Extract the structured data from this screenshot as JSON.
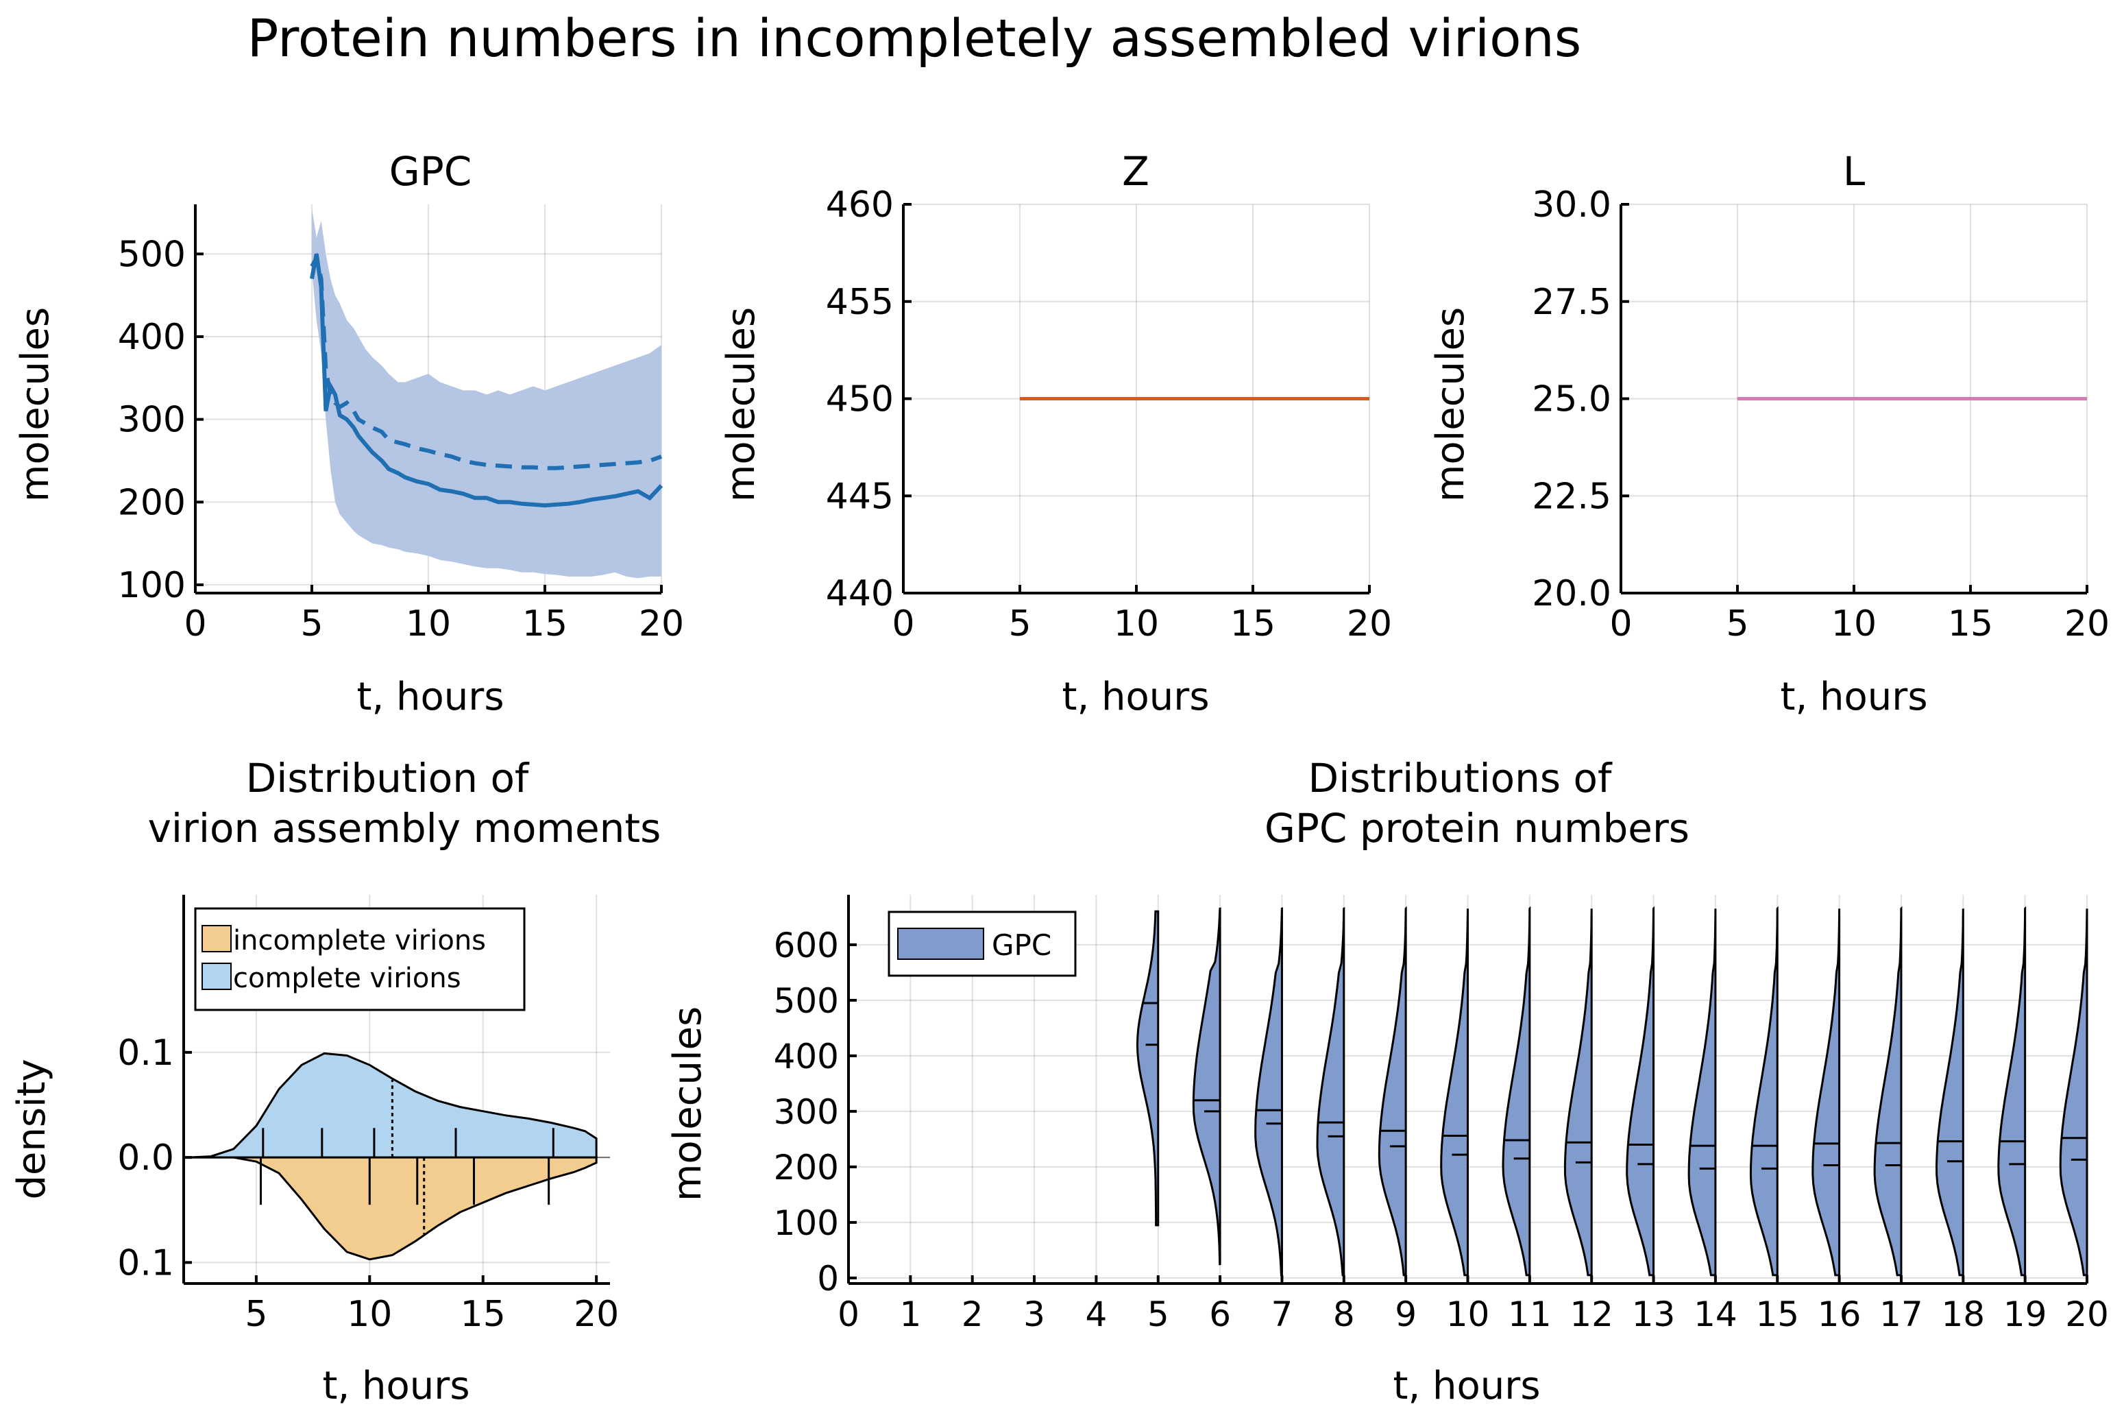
{
  "figure_title": "Protein numbers in incompletely assembled virions",
  "chart_data": [
    {
      "id": "gpc",
      "type": "line",
      "title": "GPC",
      "xlabel": "t, hours",
      "ylabel": "molecules",
      "xlim": [
        0,
        20
      ],
      "ylim": [
        90,
        560
      ],
      "xticks": [
        0,
        5,
        10,
        15,
        20
      ],
      "yticks": [
        100,
        200,
        300,
        400,
        500
      ],
      "xtick_labels": [
        "0",
        "5",
        "10",
        "15",
        "20"
      ],
      "ytick_labels": [
        "100",
        "200",
        "300",
        "400",
        "500"
      ],
      "grid": true,
      "colors": {
        "line": "#1f6fb2",
        "band": "#b4c6e4"
      },
      "x": [
        5.0,
        5.2,
        5.4,
        5.6,
        5.8,
        6.0,
        6.2,
        6.5,
        6.8,
        7.0,
        7.3,
        7.6,
        8.0,
        8.3,
        8.7,
        9.0,
        9.5,
        10.0,
        10.5,
        11.0,
        11.5,
        12.0,
        12.5,
        13.0,
        13.5,
        14.0,
        14.5,
        15.0,
        15.5,
        16.0,
        16.5,
        17.0,
        17.5,
        18.0,
        18.5,
        19.0,
        19.5,
        20.0
      ],
      "series": [
        {
          "name": "band_upper",
          "values": [
            555,
            520,
            540,
            500,
            470,
            450,
            440,
            420,
            410,
            400,
            385,
            375,
            365,
            355,
            345,
            345,
            350,
            355,
            345,
            340,
            335,
            335,
            330,
            335,
            330,
            335,
            340,
            335,
            340,
            345,
            350,
            355,
            360,
            365,
            370,
            375,
            380,
            390
          ]
        },
        {
          "name": "band_lower",
          "values": [
            480,
            420,
            380,
            300,
            240,
            200,
            185,
            175,
            165,
            160,
            155,
            150,
            148,
            145,
            143,
            140,
            138,
            135,
            130,
            128,
            125,
            122,
            120,
            120,
            118,
            115,
            115,
            113,
            112,
            110,
            110,
            110,
            112,
            115,
            110,
            108,
            110,
            110
          ]
        },
        {
          "name": "mean",
          "values": [
            485,
            495,
            470,
            360,
            330,
            320,
            315,
            320,
            310,
            300,
            295,
            290,
            285,
            275,
            272,
            270,
            265,
            262,
            258,
            255,
            250,
            247,
            245,
            244,
            243,
            242,
            242,
            241,
            241,
            242,
            243,
            244,
            245,
            246,
            247,
            248,
            250,
            255
          ]
        },
        {
          "name": "median",
          "values": [
            470,
            500,
            460,
            310,
            340,
            330,
            305,
            300,
            290,
            280,
            270,
            260,
            250,
            240,
            235,
            230,
            225,
            222,
            215,
            213,
            210,
            205,
            205,
            200,
            200,
            198,
            197,
            196,
            197,
            198,
            200,
            203,
            205,
            207,
            210,
            213,
            205,
            220
          ]
        }
      ]
    },
    {
      "id": "z",
      "type": "line",
      "title": "Z",
      "xlabel": "t, hours",
      "ylabel": "molecules",
      "xlim": [
        0,
        20
      ],
      "ylim": [
        440,
        460
      ],
      "xticks": [
        0,
        5,
        10,
        15,
        20
      ],
      "yticks": [
        440,
        445,
        450,
        455,
        460
      ],
      "xtick_labels": [
        "0",
        "5",
        "10",
        "15",
        "20"
      ],
      "ytick_labels": [
        "440",
        "445",
        "450",
        "455",
        "460"
      ],
      "grid": true,
      "colors": {
        "line": "#d45c1e"
      },
      "x": [
        5,
        20
      ],
      "series": [
        {
          "name": "Z",
          "values": [
            450,
            450
          ]
        }
      ]
    },
    {
      "id": "l",
      "type": "line",
      "title": "L",
      "xlabel": "t, hours",
      "ylabel": "molecules",
      "xlim": [
        0,
        20
      ],
      "ylim": [
        20,
        30
      ],
      "xticks": [
        0,
        5,
        10,
        15,
        20
      ],
      "yticks": [
        20,
        22.5,
        25,
        27.5,
        30
      ],
      "xtick_labels": [
        "0",
        "5",
        "10",
        "15",
        "20"
      ],
      "ytick_labels": [
        "20.0",
        "22.5",
        "25.0",
        "27.5",
        "30.0"
      ],
      "grid": true,
      "colors": {
        "line": "#d67ab4"
      },
      "x": [
        5,
        20
      ],
      "series": [
        {
          "name": "L",
          "values": [
            25,
            25
          ]
        }
      ]
    },
    {
      "id": "assembly",
      "type": "area",
      "title_lines": [
        "Distribution of",
        "virion assembly moments"
      ],
      "xlabel": "t, hours",
      "ylabel": "density",
      "xlim": [
        1.8,
        20.6
      ],
      "ylim": [
        -0.12,
        0.25
      ],
      "xticks": [
        5,
        10,
        15,
        20
      ],
      "yticks": [
        -0.1,
        0,
        0.1
      ],
      "xtick_labels": [
        "5",
        "10",
        "15",
        "20"
      ],
      "ytick_labels": [
        "0.1",
        "0.0",
        "0.1"
      ],
      "grid": true,
      "legend_position": "top-left",
      "colors": {
        "complete": "#b1d5f0",
        "incomplete": "#f3cc8f"
      },
      "x": [
        2,
        3,
        4,
        5,
        6,
        7,
        8,
        9,
        10,
        11,
        12,
        13,
        14,
        15,
        16,
        17,
        18,
        19,
        19.5,
        20
      ],
      "series": [
        {
          "name": "complete virions",
          "values": [
            0,
            0.001,
            0.008,
            0.03,
            0.065,
            0.088,
            0.099,
            0.097,
            0.088,
            0.075,
            0.063,
            0.054,
            0.048,
            0.044,
            0.04,
            0.037,
            0.033,
            0.028,
            0.025,
            0.018
          ]
        },
        {
          "name": "incomplete virions",
          "values": [
            0,
            0,
            0,
            0.004,
            0.015,
            0.04,
            0.068,
            0.09,
            0.097,
            0.093,
            0.08,
            0.065,
            0.052,
            0.043,
            0.034,
            0.027,
            0.02,
            0.014,
            0.01,
            0.005
          ]
        }
      ],
      "complete_rug": [
        5.3,
        7.9,
        10.2,
        13.8,
        18.1
      ],
      "complete_median": 11.0,
      "incomplete_rug": [
        5.2,
        10.0,
        12.1,
        14.6,
        17.9
      ],
      "incomplete_median": 12.4
    },
    {
      "id": "violin",
      "type": "violin",
      "title_lines": [
        "Distributions of",
        "GPC protein numbers"
      ],
      "xlabel": "t, hours",
      "ylabel": "molecules",
      "xlim": [
        0,
        20
      ],
      "ylim": [
        -10,
        690
      ],
      "xticks": [
        0,
        1,
        2,
        3,
        4,
        5,
        6,
        7,
        8,
        9,
        10,
        11,
        12,
        13,
        14,
        15,
        16,
        17,
        18,
        19,
        20
      ],
      "yticks": [
        0,
        100,
        200,
        300,
        400,
        500,
        600
      ],
      "xtick_labels": [
        "0",
        "1",
        "2",
        "3",
        "4",
        "5",
        "6",
        "7",
        "8",
        "9",
        "10",
        "11",
        "12",
        "13",
        "14",
        "15",
        "16",
        "17",
        "18",
        "19",
        "20"
      ],
      "ytick_labels": [
        "0",
        "100",
        "200",
        "300",
        "400",
        "500",
        "600"
      ],
      "grid": true,
      "legend_position": "top-left",
      "colors": {
        "fill": "#7f9ccd"
      },
      "groups": [
        {
          "t": 5,
          "min": 95,
          "max": 660,
          "mode": 420,
          "mean": 495,
          "median": 420
        },
        {
          "t": 6,
          "min": 25,
          "max": 665,
          "mode": 310,
          "mean": 320,
          "median": 300
        },
        {
          "t": 7,
          "min": 5,
          "max": 665,
          "mode": 260,
          "mean": 302,
          "median": 278
        },
        {
          "t": 8,
          "min": 5,
          "max": 665,
          "mode": 240,
          "mean": 280,
          "median": 255
        },
        {
          "t": 9,
          "min": 5,
          "max": 665,
          "mode": 220,
          "mean": 265,
          "median": 237
        },
        {
          "t": 10,
          "min": 5,
          "max": 665,
          "mode": 200,
          "mean": 256,
          "median": 222
        },
        {
          "t": 11,
          "min": 5,
          "max": 665,
          "mode": 200,
          "mean": 248,
          "median": 215
        },
        {
          "t": 12,
          "min": 5,
          "max": 665,
          "mode": 195,
          "mean": 244,
          "median": 208
        },
        {
          "t": 13,
          "min": 5,
          "max": 665,
          "mode": 190,
          "mean": 240,
          "median": 205
        },
        {
          "t": 14,
          "min": 5,
          "max": 665,
          "mode": 185,
          "mean": 238,
          "median": 197
        },
        {
          "t": 15,
          "min": 5,
          "max": 665,
          "mode": 185,
          "mean": 238,
          "median": 197
        },
        {
          "t": 16,
          "min": 5,
          "max": 665,
          "mode": 190,
          "mean": 242,
          "median": 203
        },
        {
          "t": 17,
          "min": 5,
          "max": 665,
          "mode": 190,
          "mean": 243,
          "median": 203
        },
        {
          "t": 18,
          "min": 5,
          "max": 665,
          "mode": 195,
          "mean": 246,
          "median": 210
        },
        {
          "t": 19,
          "min": 5,
          "max": 665,
          "mode": 195,
          "mean": 246,
          "median": 205
        },
        {
          "t": 20,
          "min": 5,
          "max": 665,
          "mode": 200,
          "mean": 252,
          "median": 213
        }
      ],
      "legend": [
        "GPC"
      ]
    }
  ]
}
